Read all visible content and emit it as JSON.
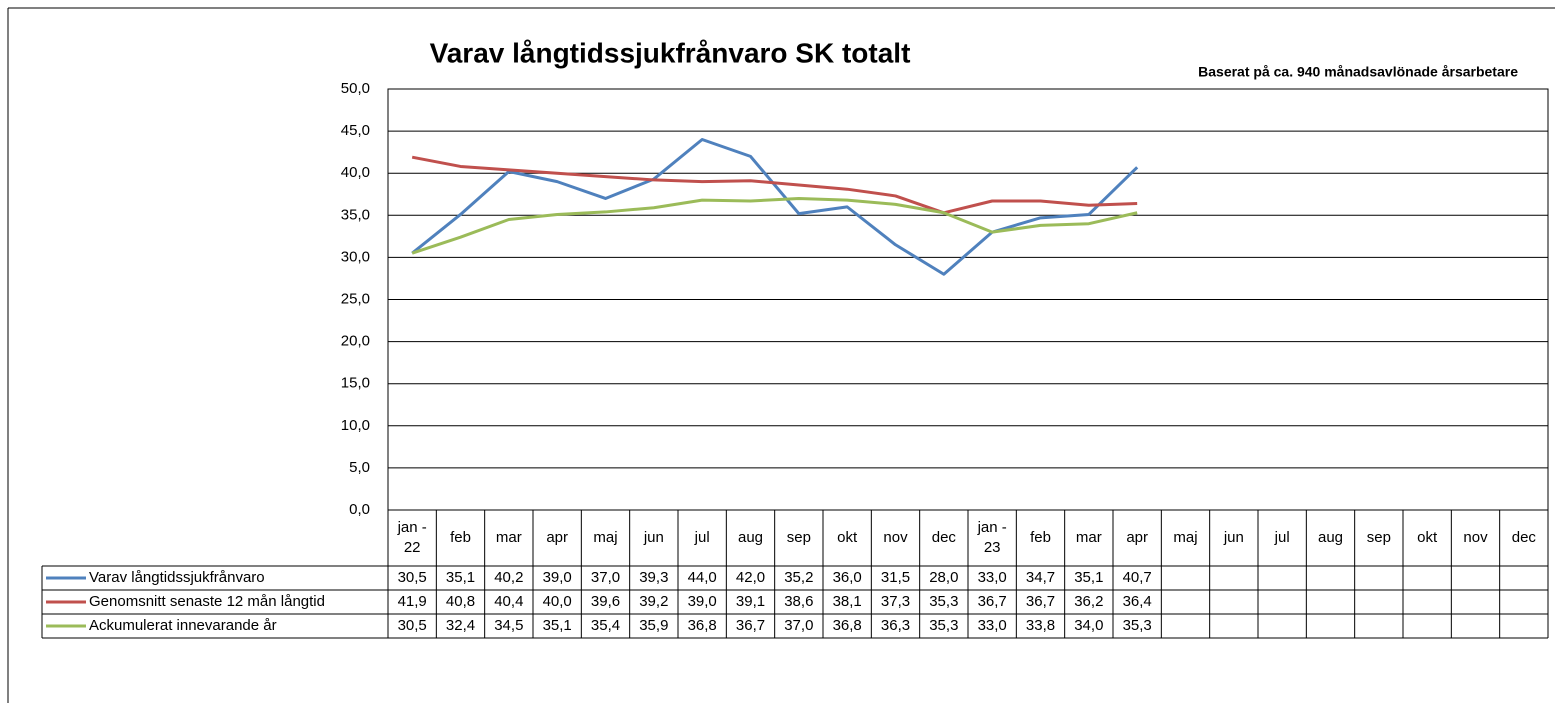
{
  "chart_data": {
    "type": "line",
    "title": "Varav långtidssjukfrånvaro SK totalt",
    "subtitle": "Baserat på ca. 940 månadsavlönade årsarbetare",
    "categories": [
      "jan - 22",
      "feb",
      "mar",
      "apr",
      "maj",
      "jun",
      "jul",
      "aug",
      "sep",
      "okt",
      "nov",
      "dec",
      "jan - 23",
      "feb",
      "mar",
      "apr",
      "maj",
      "jun",
      "jul",
      "aug",
      "sep",
      "okt",
      "nov",
      "dec"
    ],
    "series": [
      {
        "name": "Varav långtidssjukfrånvaro",
        "color": "#4f81bd",
        "values": [
          30.5,
          35.1,
          40.2,
          39.0,
          37.0,
          39.3,
          44.0,
          42.0,
          35.2,
          36.0,
          31.5,
          28.0,
          33.0,
          34.7,
          35.1,
          40.7,
          null,
          null,
          null,
          null,
          null,
          null,
          null,
          null
        ],
        "value_labels": [
          "30,5",
          "35,1",
          "40,2",
          "39,0",
          "37,0",
          "39,3",
          "44,0",
          "42,0",
          "35,2",
          "36,0",
          "31,5",
          "28,0",
          "33,0",
          "34,7",
          "35,1",
          "40,7",
          null,
          null,
          null,
          null,
          null,
          null,
          null,
          null
        ]
      },
      {
        "name": "Genomsnitt senaste 12 mån långtid",
        "color": "#c0504d",
        "values": [
          41.9,
          40.8,
          40.4,
          40.0,
          39.6,
          39.2,
          39.0,
          39.1,
          38.6,
          38.1,
          37.3,
          35.3,
          36.7,
          36.7,
          36.2,
          36.4,
          null,
          null,
          null,
          null,
          null,
          null,
          null,
          null
        ],
        "value_labels": [
          "41,9",
          "40,8",
          "40,4",
          "40,0",
          "39,6",
          "39,2",
          "39,0",
          "39,1",
          "38,6",
          "38,1",
          "37,3",
          "35,3",
          "36,7",
          "36,7",
          "36,2",
          "36,4",
          null,
          null,
          null,
          null,
          null,
          null,
          null,
          null
        ]
      },
      {
        "name": "Ackumulerat innevarande år",
        "color": "#9bbb59",
        "values": [
          30.5,
          32.4,
          34.5,
          35.1,
          35.4,
          35.9,
          36.8,
          36.7,
          37.0,
          36.8,
          36.3,
          35.3,
          33.0,
          33.8,
          34.0,
          35.3,
          null,
          null,
          null,
          null,
          null,
          null,
          null,
          null
        ],
        "value_labels": [
          "30,5",
          "32,4",
          "34,5",
          "35,1",
          "35,4",
          "35,9",
          "36,8",
          "36,7",
          "37,0",
          "36,8",
          "36,3",
          "35,3",
          "33,0",
          "33,8",
          "34,0",
          "35,3",
          null,
          null,
          null,
          null,
          null,
          null,
          null,
          null
        ]
      }
    ],
    "ylim": [
      0,
      50
    ],
    "yticks": [
      {
        "value": 0,
        "label": "0,0"
      },
      {
        "value": 5,
        "label": "5,0"
      },
      {
        "value": 10,
        "label": "10,0"
      },
      {
        "value": 15,
        "label": "15,0"
      },
      {
        "value": 20,
        "label": "20,0"
      },
      {
        "value": 25,
        "label": "25,0"
      },
      {
        "value": 30,
        "label": "30,0"
      },
      {
        "value": 35,
        "label": "35,0"
      },
      {
        "value": 40,
        "label": "40,0"
      },
      {
        "value": 45,
        "label": "45,0"
      },
      {
        "value": 50,
        "label": "50,0"
      }
    ],
    "grid": true
  }
}
